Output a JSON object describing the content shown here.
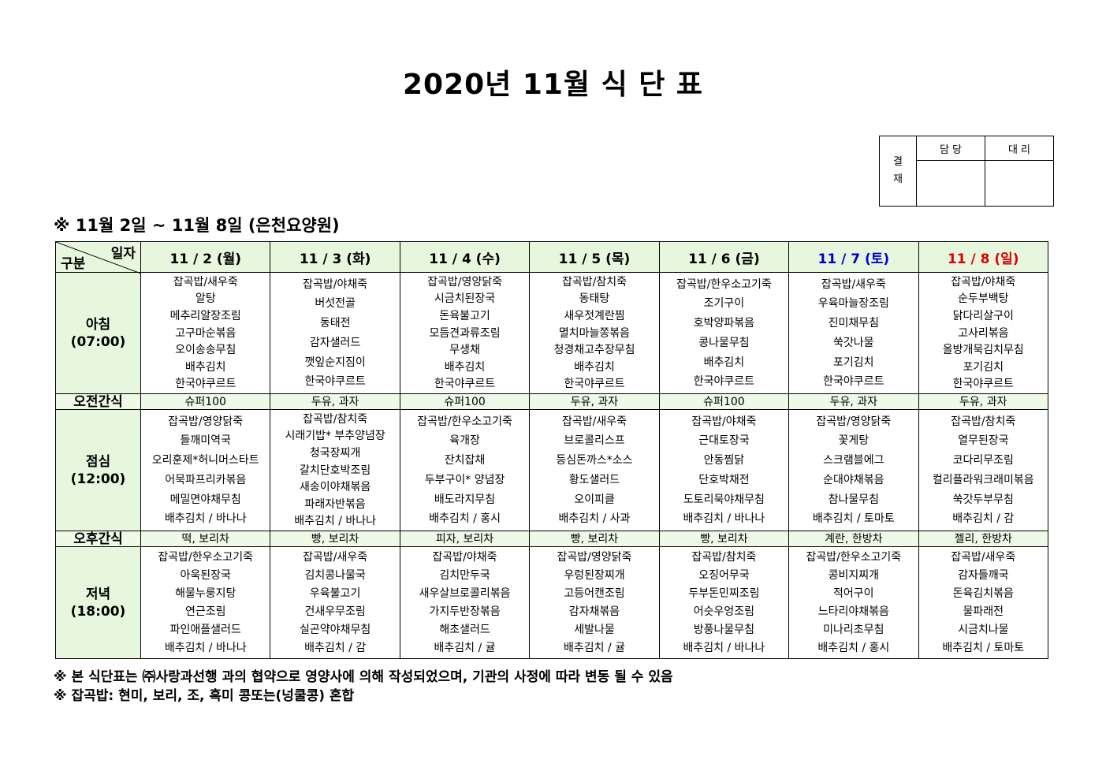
{
  "title": "2020년 11월 식 단 표",
  "approval": {
    "label": "결\n재",
    "label_top": "결",
    "label_bottom": "재",
    "col1": "담 당",
    "col2": "대 리"
  },
  "subtitle": "※ 11월 2일 ~ 11월 8일 (은천요양원)",
  "corner": {
    "top": "일자",
    "bottom": "구분"
  },
  "colors": {
    "header_bg": "#e7f7de",
    "saturday": "#0000cc",
    "sunday": "#e00000"
  },
  "days": [
    {
      "label": "11 / 2 (월)",
      "color": "#000000"
    },
    {
      "label": "11 / 3 (화)",
      "color": "#000000"
    },
    {
      "label": "11 / 4 (수)",
      "color": "#000000"
    },
    {
      "label": "11 / 5 (목)",
      "color": "#000000"
    },
    {
      "label": "11 / 6 (금)",
      "color": "#000000"
    },
    {
      "label": "11 / 7 (토)",
      "color": "#0000cc"
    },
    {
      "label": "11 / 8 (일)",
      "color": "#e00000"
    }
  ],
  "meals": [
    {
      "name": "아침",
      "time": "(07:00)",
      "type": "meal",
      "items": [
        [
          "잡곡밥/새우죽",
          "알탕",
          "메추리알장조림",
          "고구마순볶음",
          "오이송송무침",
          "배추김치",
          "한국야쿠르트"
        ],
        [
          "잡곡밥/야채죽",
          "버섯전골",
          "동태전",
          "감자샐러드",
          "깻잎순지짐이",
          "한국야쿠르트"
        ],
        [
          "잡곡밥/영양닭죽",
          "시금치된장국",
          "돈육불고기",
          "모듬견과류조림",
          "무생채",
          "배추김치",
          "한국야쿠르트"
        ],
        [
          "잡곡밥/참치죽",
          "동태탕",
          "새우젓계란찜",
          "멸치마늘쫑볶음",
          "청경채고추장무침",
          "배추김치",
          "한국야쿠르트"
        ],
        [
          "잡곡밥/한우소고기죽",
          "조기구이",
          "호박양파볶음",
          "콩나물무침",
          "배추김치",
          "한국야쿠르트"
        ],
        [
          "잡곡밥/새우죽",
          "우육마늘장조림",
          "진미채무침",
          "쑥갓나물",
          "포기김치",
          "한국야쿠르트"
        ],
        [
          "잡곡밥/야채죽",
          "순두부백탕",
          "닭다리살구이",
          "고사리볶음",
          "올방개묵김치무침",
          "포기김치",
          "한국야쿠르트"
        ]
      ]
    },
    {
      "name": "오전간식",
      "time": "",
      "type": "snack",
      "items": [
        "슈퍼100",
        "두유, 과자",
        "슈퍼100",
        "두유, 과자",
        "슈퍼100",
        "두유, 과자",
        "두유, 과자"
      ]
    },
    {
      "name": "점심",
      "time": "(12:00)",
      "type": "meal",
      "items": [
        [
          "잡곡밥/영양닭죽",
          "들깨미역국",
          "오리훈제*허니머스타트",
          "어묵파프리카볶음",
          "메밀면야채무침",
          "배추김치 / 바나나"
        ],
        [
          "잡곡밥/참치죽",
          "시래기밥* 부추양념장",
          "청국장찌개",
          "갈치단호박조림",
          "새송이야채볶음",
          "파래자반볶음",
          "배추김치 / 바나나"
        ],
        [
          "잡곡밥/한우소고기죽",
          "육개장",
          "잔치잡채",
          "두부구이* 양념장",
          "배도라지무침",
          "배추김치 / 홍시"
        ],
        [
          "잡곡밥/새우죽",
          "브로콜리스프",
          "등심돈까스*소스",
          "황도샐러드",
          "오이피클",
          "배추김치 / 사과"
        ],
        [
          "잡곡밥/야채죽",
          "근대토장국",
          "안동찜닭",
          "단호박채전",
          "도토리묵야채무침",
          "배추김치 / 바나나"
        ],
        [
          "잡곡밥/영양닭죽",
          "꽃게탕",
          "스크램블에그",
          "순대야채볶음",
          "참나물무침",
          "배추김치 / 토마토"
        ],
        [
          "잡곡밥/참치죽",
          "열무된장국",
          "코다리무조림",
          "컬리플라워크래미볶음",
          "쑥갓두부무침",
          "배추김치 / 감"
        ]
      ]
    },
    {
      "name": "오후간식",
      "time": "",
      "type": "snack",
      "items": [
        "떡, 보리차",
        "빵, 보리차",
        "피자, 보리차",
        "빵, 보리차",
        "빵, 보리차",
        "계란, 한방차",
        "젤리, 한방차"
      ]
    },
    {
      "name": "저녁",
      "time": "(18:00)",
      "type": "meal",
      "items": [
        [
          "잡곡밥/한우소고기죽",
          "아욱된장국",
          "해물누룽지탕",
          "연근조림",
          "파인애플샐러드",
          "배추김치 / 바나나"
        ],
        [
          "잡곡밥/새우죽",
          "김치콩나물국",
          "우육불고기",
          "건새우무조림",
          "실곤약야채무침",
          "배추김치 / 감"
        ],
        [
          "잡곡밥/야채죽",
          "김치만두국",
          "새우살브로콜리볶음",
          "가지두반장볶음",
          "해초샐러드",
          "배추김치 / 귤"
        ],
        [
          "잡곡밥/영양닭죽",
          "우렁된장찌개",
          "고등어캔조림",
          "감자채볶음",
          "세발나물",
          "배추김치 / 귤"
        ],
        [
          "잡곡밥/참치죽",
          "오징어무국",
          "두부돈민찌조림",
          "어슷우엉조림",
          "방풍나물무침",
          "배추김치 / 바나나"
        ],
        [
          "잡곡밥/한우소고기죽",
          "콩비지찌개",
          "적어구이",
          "느타리야채볶음",
          "미나리초무침",
          "배추김치 / 홍시"
        ],
        [
          "잡곡밥/새우죽",
          "감자들깨국",
          "돈육김치볶음",
          "물파래전",
          "시금치나물",
          "배추김치 / 토마토"
        ]
      ]
    }
  ],
  "notes": [
    "※ 본 식단표는 ㈜사랑과선행 과의 협약으로 영양사에 의해 작성되었으며, 기관의 사정에 따라 변동 될 수 있음",
    "※ 잡곡밥: 현미, 보리, 조, 흑미 콩또는(넝쿨콩) 혼합"
  ]
}
